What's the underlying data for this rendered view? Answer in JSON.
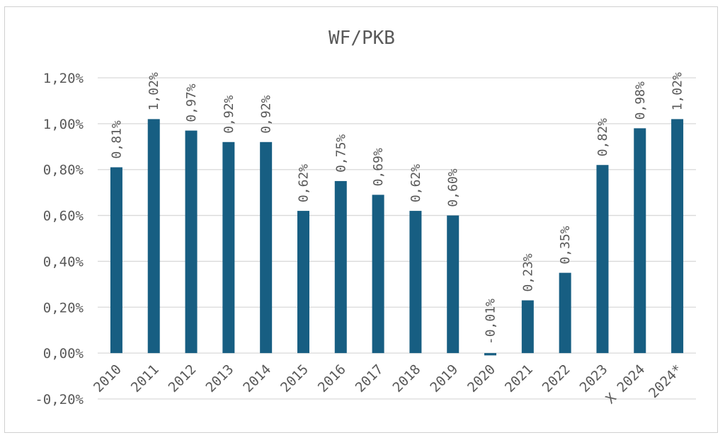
{
  "chart_data": {
    "type": "bar",
    "title": "WF/PKB",
    "xlabel": "",
    "ylabel": "",
    "categories": [
      "2010",
      "2011",
      "2012",
      "2013",
      "2014",
      "2015",
      "2016",
      "2017",
      "2018",
      "2019",
      "2020",
      "2021",
      "2022",
      "2023",
      "X 2024",
      "2024*"
    ],
    "values": [
      0.81,
      1.02,
      0.97,
      0.92,
      0.92,
      0.62,
      0.75,
      0.69,
      0.62,
      0.6,
      -0.01,
      0.23,
      0.35,
      0.82,
      0.98,
      1.02
    ],
    "data_labels": [
      "0,81%",
      "1,02%",
      "0,97%",
      "0,92%",
      "0,92%",
      "0,62%",
      "0,75%",
      "0,69%",
      "0,62%",
      "0,60%",
      "-0,01%",
      "0,23%",
      "0,35%",
      "0,82%",
      "0,98%",
      "1,02%"
    ],
    "ylim": [
      -0.2,
      1.2
    ],
    "yticks": [
      1.2,
      1.0,
      0.8,
      0.6,
      0.4,
      0.2,
      0.0,
      -0.2
    ],
    "ytick_labels": [
      "1,20%",
      "1,00%",
      "0,80%",
      "0,60%",
      "0,40%",
      "0,20%",
      "0,00%",
      "-0,20%"
    ],
    "grid": true,
    "legend": "none",
    "colors": {
      "bar": "#175E82",
      "grid": "#d9d9d9",
      "text": "#595959"
    }
  }
}
